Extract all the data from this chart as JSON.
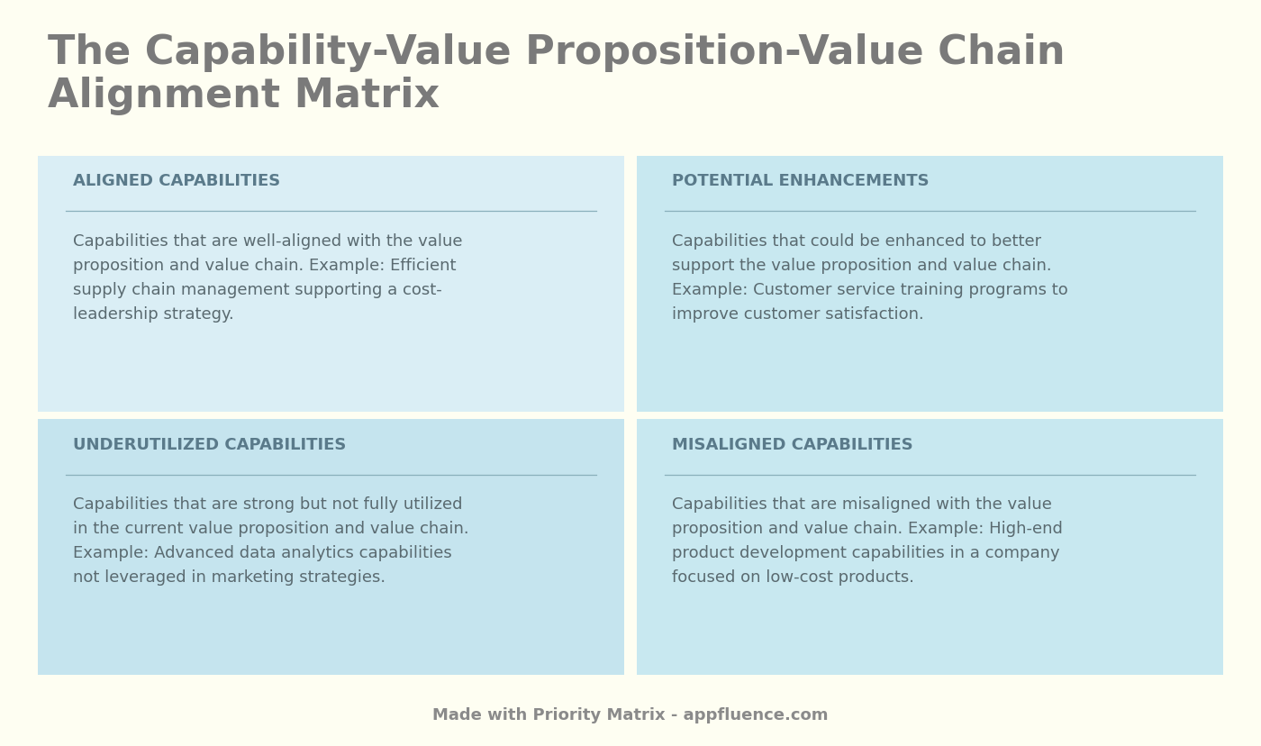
{
  "title": "The Capability-Value Proposition-Value Chain\nAlignment Matrix",
  "title_color": "#7a7a7a",
  "title_fontsize": 32,
  "title_fontweight": "bold",
  "background_color": "#fefef2",
  "footer_text": "Made with Priority Matrix - appfluence.com",
  "footer_color": "#8a8a8a",
  "footer_fontsize": 13,
  "quadrants": [
    {
      "label": "ALIGNED CAPABILITIES",
      "text": "Capabilities that are well-aligned with the value\nproposition and value chain. Example: Efficient\nsupply chain management supporting a cost-\nleadership strategy.",
      "bg_color": "#daeef5",
      "row": 0,
      "col": 0
    },
    {
      "label": "POTENTIAL ENHANCEMENTS",
      "text": "Capabilities that could be enhanced to better\nsupport the value proposition and value chain.\nExample: Customer service training programs to\nimprove customer satisfaction.",
      "bg_color": "#c8e8f0",
      "row": 0,
      "col": 1
    },
    {
      "label": "UNDERUTILIZED CAPABILITIES",
      "text": "Capabilities that are strong but not fully utilized\nin the current value proposition and value chain.\nExample: Advanced data analytics capabilities\nnot leveraged in marketing strategies.",
      "bg_color": "#c5e4ee",
      "row": 1,
      "col": 0
    },
    {
      "label": "MISALIGNED CAPABILITIES",
      "text": "Capabilities that are misaligned with the value\nproposition and value chain. Example: High-end\nproduct development capabilities in a company\nfocused on low-cost products.",
      "bg_color": "#c8e8f0",
      "row": 1,
      "col": 1
    }
  ],
  "label_color": "#5a7a8a",
  "label_fontsize": 13,
  "text_color": "#5a6a70",
  "text_fontsize": 13,
  "line_color": "#8ab0bb"
}
